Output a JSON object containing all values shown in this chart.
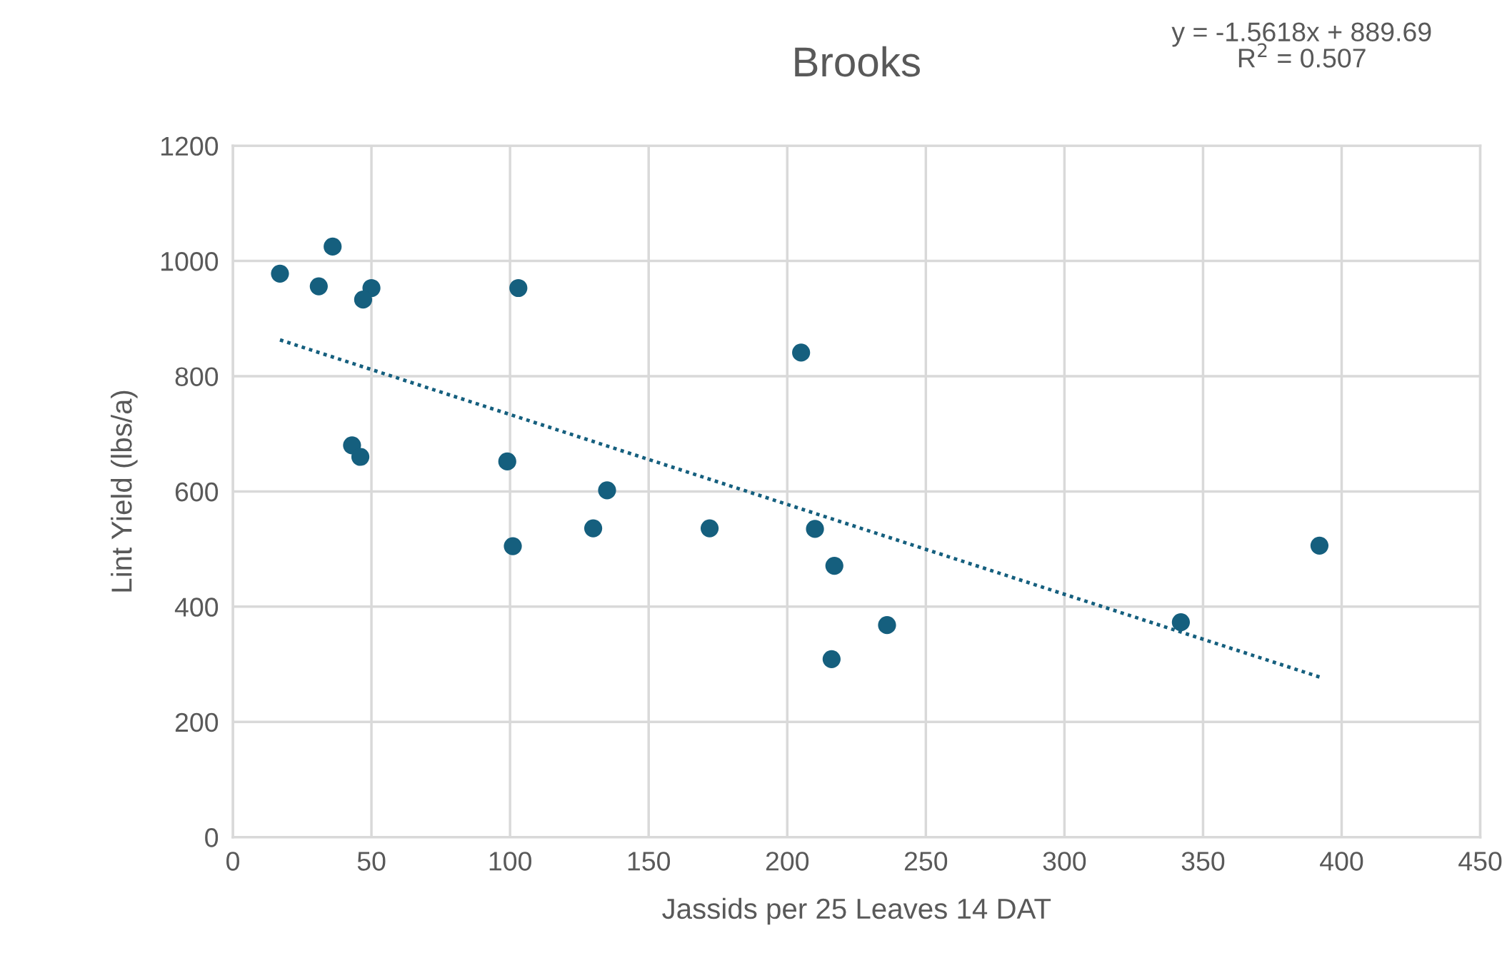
{
  "chart_data": {
    "type": "scatter",
    "title": "Brooks",
    "xlabel": "Jassids per 25 Leaves 14 DAT",
    "ylabel": "Lint Yield (lbs/a)",
    "xlim": [
      0,
      450
    ],
    "xticks": [
      0,
      50,
      100,
      150,
      200,
      250,
      300,
      350,
      400,
      450
    ],
    "ylim": [
      0,
      1200
    ],
    "yticks": [
      0,
      200,
      400,
      600,
      800,
      1000,
      1200
    ],
    "grid": true,
    "annotations": [
      "y = -1.5618x + 889.69",
      "R$^{2}$ = 0.507"
    ],
    "series": [
      {
        "marker": "circle",
        "color": "#155f7e",
        "x": [
          17,
          31,
          36,
          50,
          47,
          103,
          43,
          46,
          99,
          101,
          130,
          135,
          172,
          205,
          210,
          217,
          216,
          236,
          342,
          392
        ],
        "values": [
          978,
          956,
          1025,
          953,
          933,
          953,
          680,
          660,
          652,
          505,
          536,
          602,
          536,
          841,
          535,
          471,
          309,
          368,
          373,
          506
        ]
      },
      {
        "type": "line",
        "color": "#155f7e",
        "line_style": "dotted",
        "x": [
          17,
          392
        ],
        "values": [
          863,
          278
        ]
      }
    ]
  }
}
